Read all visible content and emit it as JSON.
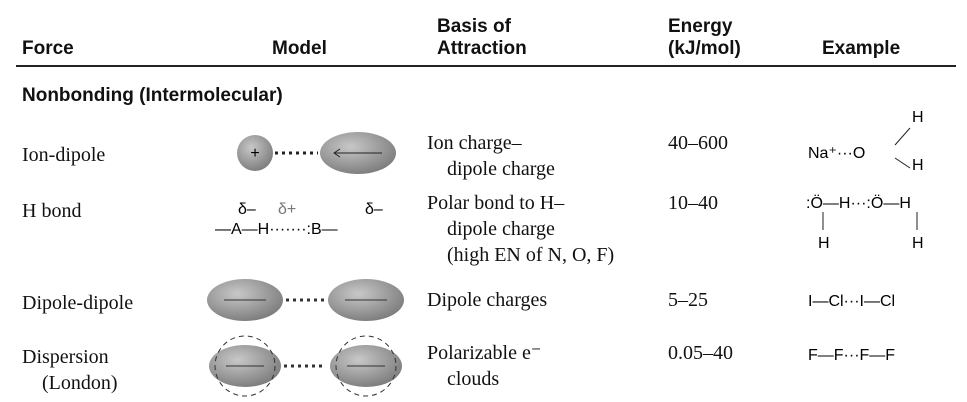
{
  "table": {
    "headers": [
      [
        "Force"
      ],
      [
        "Model"
      ],
      [
        "Basis of",
        "Attraction"
      ],
      [
        "Energy",
        "(kJ/mol)"
      ],
      [
        "Example"
      ]
    ],
    "section": "Nonbonding (Intermolecular)",
    "rows": [
      {
        "force": [
          "Ion-dipole"
        ],
        "model_labels": [
          "+"
        ],
        "basis": [
          "Ion charge–",
          "dipole charge"
        ],
        "energy": "40–600",
        "example": [
          "Na⁺···O",
          "H",
          "H"
        ]
      },
      {
        "force": [
          "H bond"
        ],
        "model_labels": [
          "δ–",
          "δ+",
          "δ–",
          "—A—H·······:B—"
        ],
        "basis": [
          "Polar bond to H–",
          "dipole charge",
          "(high EN of N, O, F)"
        ],
        "energy": "10–40",
        "example": [
          ":Ö—H···:Ö—H",
          "H",
          "H"
        ]
      },
      {
        "force": [
          "Dipole-dipole"
        ],
        "model_labels": [],
        "basis": [
          "Dipole charges"
        ],
        "energy": "5–25",
        "example": [
          "I—Cl···I—Cl"
        ]
      },
      {
        "force": [
          "Dispersion",
          "(London)"
        ],
        "model_labels": [],
        "basis": [
          "Polarizable e⁻",
          "clouds"
        ],
        "energy": "0.05–40",
        "example": [
          "F—F···F—F"
        ]
      }
    ]
  }
}
